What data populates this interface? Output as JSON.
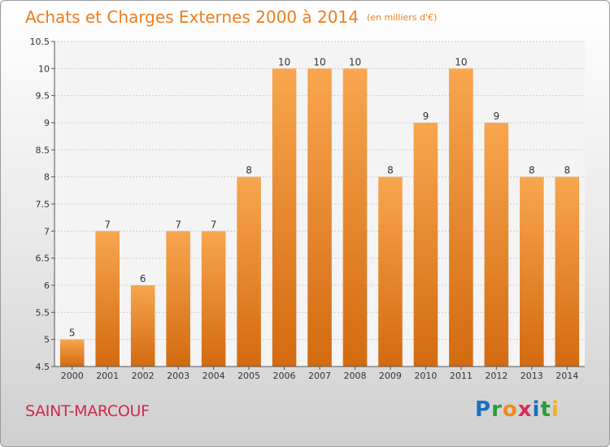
{
  "header": {
    "title": "Achats et Charges Externes 2000 à 2014",
    "subtitle": "(en milliers d'€)"
  },
  "commune": "SAINT-MARCOUF",
  "logo": {
    "letters": [
      "P",
      "r",
      "o",
      "x",
      "i",
      "t",
      "i"
    ],
    "colors": [
      "#1a6fc0",
      "#2a9d3c",
      "#f08a1c",
      "#d62f5a",
      "#1a6fc0",
      "#2a9d3c",
      "#f0b41c"
    ]
  },
  "colors": {
    "accent": "#ef7d1b",
    "bar_light": "#f8a64f",
    "bar_dark": "#d36a10",
    "commune": "#cf2a4a"
  },
  "chart_data": {
    "type": "bar",
    "title": "Achats et Charges Externes 2000 à 2014",
    "subtitle": "(en milliers d'€)",
    "categories": [
      "2000",
      "2001",
      "2002",
      "2003",
      "2004",
      "2005",
      "2006",
      "2007",
      "2008",
      "2009",
      "2010",
      "2011",
      "2012",
      "2013",
      "2014"
    ],
    "values": [
      5,
      7,
      6,
      7,
      7,
      8,
      10,
      10,
      10,
      8,
      9,
      10,
      9,
      8,
      8
    ],
    "ylim": [
      4.5,
      10.5
    ],
    "yticks": [
      "4.5",
      "5",
      "5.5",
      "6",
      "6.5",
      "7",
      "7.5",
      "8",
      "8.5",
      "9",
      "9.5",
      "10",
      "10.5"
    ],
    "grid": true
  }
}
